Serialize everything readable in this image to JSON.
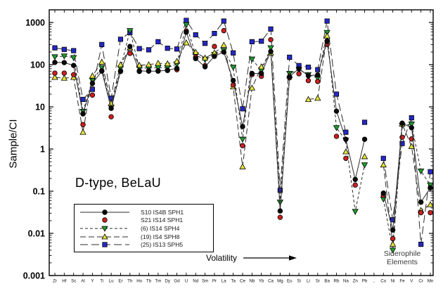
{
  "chart_data": {
    "type": "line",
    "title": "D-type, BeLaU",
    "ylabel": "Sample/CI",
    "grid": false,
    "legend_position": "lower-left-inside",
    "ylim": [
      0.001,
      2000
    ],
    "yticks": [
      1000,
      100,
      10,
      1,
      0.1,
      0.01,
      0.001
    ],
    "categories": [
      "Zr",
      "Hf",
      "Sc",
      "Al",
      "Y",
      "Ti",
      "Lu",
      "Er",
      "Th",
      "Ho",
      "Tb",
      "Tm",
      "Dy",
      "Gd",
      "U",
      "Nd",
      "Sm",
      "Pr",
      "La",
      "Ta",
      "Ce",
      "Nb",
      "Yb",
      "Ca",
      "Mg",
      "Eu",
      "Si",
      "Li",
      "Sr",
      "Ba",
      "Rb",
      "Na",
      "Zn",
      "Pb",
      "..",
      "Co",
      "Ni",
      "Fe",
      "V",
      "Cr",
      "Mn"
    ],
    "annotations": {
      "volatility": "Volatility",
      "siderophile_line1": "Siderophile",
      "siderophile_line2": "Elements"
    },
    "series": [
      {
        "name": "S10 IS4B SPH1",
        "marker": "circle",
        "color": "#0a0a0a",
        "line": "solid",
        "values": [
          113,
          112,
          96,
          6.8,
          36,
          70,
          9.2,
          69,
          270,
          71,
          70,
          70,
          74,
          82,
          590,
          139,
          89,
          158,
          199,
          42,
          3.4,
          62,
          62,
          205,
          0.034,
          52,
          80,
          55,
          57,
          365,
          7.9,
          1.7,
          0.19,
          1.7,
          null,
          0.09,
          0.012,
          4.1,
          3.2,
          0.055,
          0.12
        ]
      },
      {
        "name": "S21 IS14 SPH1",
        "marker": "circle",
        "color": "#cc1f1f",
        "line": "none",
        "values": [
          63,
          63,
          58,
          3.8,
          19,
          72,
          5.8,
          71,
          185,
          69,
          72,
          72,
          73,
          76,
          630,
          152,
          95,
          270,
          640,
          33,
          1.2,
          58,
          53,
          390,
          0.024,
          49,
          61,
          42,
          40,
          300,
          2.0,
          0.6,
          0.14,
          null,
          null,
          0.08,
          0.0075,
          1.9,
          1.73,
          0.031,
          0.031
        ]
      },
      {
        "name": "(6) IS14 SPH4",
        "marker": "triangle-down",
        "color": "#1f9e2c",
        "line": "dash",
        "values": [
          153,
          160,
          147,
          7.8,
          42,
          85,
          9.7,
          83,
          640,
          83,
          83,
          85,
          85,
          103,
          890,
          169,
          131,
          173,
          218,
          87,
          1.7,
          135,
          73,
          250,
          0.055,
          62,
          76,
          58,
          48,
          580,
          3.2,
          1.6,
          0.033,
          0.42,
          null,
          0.065,
          0.004,
          3.6,
          3.9,
          0.3,
          0.14
        ]
      },
      {
        "name": "(19) IS4 SPH8",
        "marker": "triangle-up",
        "color": "#e3e33a",
        "line": "dash2",
        "values": [
          50,
          48,
          50,
          2.5,
          54,
          115,
          12,
          100,
          250,
          97,
          100,
          108,
          105,
          120,
          330,
          197,
          144,
          190,
          290,
          30,
          0.38,
          28,
          89,
          190,
          null,
          56,
          null,
          15,
          16,
          480,
          null,
          0.86,
          null,
          0.66,
          null,
          0.42,
          0.0055,
          3.9,
          1.15,
          0.035,
          0.048
        ]
      },
      {
        "name": "(25) IS13 SPH5",
        "marker": "square",
        "color": "#2427c9",
        "line": "longdash",
        "values": [
          250,
          230,
          215,
          15,
          26,
          300,
          16,
          400,
          575,
          240,
          225,
          350,
          245,
          235,
          1120,
          510,
          320,
          550,
          1080,
          190,
          9,
          350,
          360,
          700,
          0.105,
          150,
          95,
          87,
          76,
          1080,
          20,
          2.5,
          null,
          4.3,
          null,
          0.6,
          0.021,
          1.35,
          5.5,
          0.0055,
          0.29
        ]
      }
    ]
  }
}
